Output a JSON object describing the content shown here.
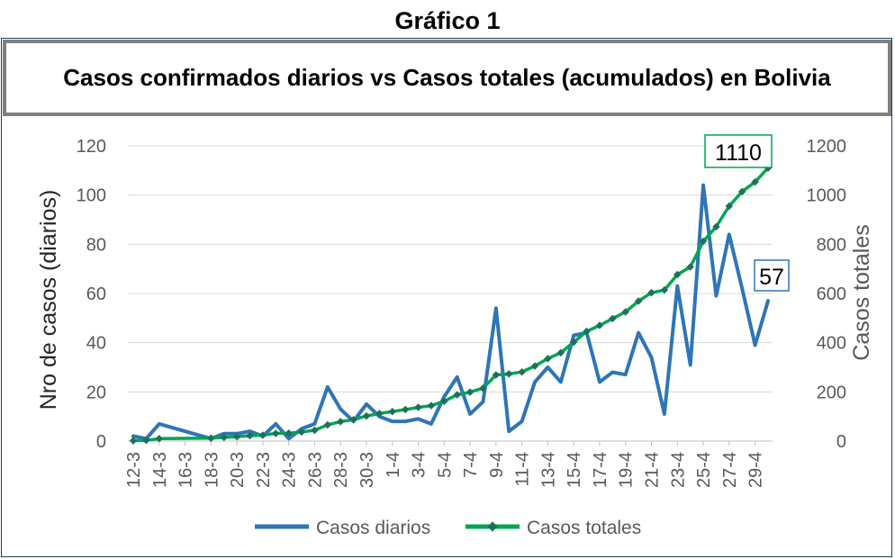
{
  "sup_title": "Gráfico 1",
  "chart_data": {
    "type": "line",
    "title": "Casos confirmados diarios vs Casos totales (acumulados) en Bolivia",
    "ylabel": "Nro de casos (diarios)",
    "y2label": "Casos totales",
    "ylim": [
      0,
      120
    ],
    "y2lim": [
      0,
      1200
    ],
    "yticks": [
      "0",
      "20",
      "40",
      "60",
      "80",
      "100",
      "120"
    ],
    "y2ticks": [
      "0",
      "200",
      "400",
      "600",
      "800",
      "1000",
      "1200"
    ],
    "xtick_labels": [
      "12-3",
      "14-3",
      "16-3",
      "18-3",
      "20-3",
      "22-3",
      "24-3",
      "26-3",
      "28-3",
      "30-3",
      "1-4",
      "3-4",
      "5-4",
      "7-4",
      "9-4",
      "11-4",
      "13-4",
      "15-4",
      "17-4",
      "19-4",
      "21-4",
      "23-4",
      "25-4",
      "27-4",
      "29-4"
    ],
    "grid": true,
    "legend": "bottom",
    "x": [
      "12-3",
      "13-3",
      "14-3",
      "18-3",
      "19-3",
      "20-3",
      "21-3",
      "22-3",
      "23-3",
      "24-3",
      "25-3",
      "26-3",
      "27-3",
      "28-3",
      "29-3",
      "30-3",
      "31-3",
      "1-4",
      "2-4",
      "3-4",
      "4-4",
      "5-4",
      "6-4",
      "7-4",
      "8-4",
      "9-4",
      "10-4",
      "11-4",
      "12-4",
      "13-4",
      "14-4",
      "15-4",
      "16-4",
      "17-4",
      "18-4",
      "19-4",
      "20-4",
      "21-4",
      "22-4",
      "23-4",
      "24-4",
      "25-4",
      "26-4",
      "27-4",
      "28-4",
      "29-4",
      "30-4"
    ],
    "series": [
      {
        "name": "Casos diarios",
        "axis": "left",
        "color": "#2e75b6",
        "values": [
          2,
          1,
          7,
          1,
          3,
          3,
          4,
          2,
          7,
          1,
          5,
          7,
          22,
          13,
          8,
          15,
          10,
          8,
          8,
          9,
          7,
          18,
          26,
          11,
          16,
          54,
          4,
          8,
          24,
          30,
          24,
          43,
          44,
          24,
          28,
          27,
          44,
          34,
          11,
          63,
          31,
          104,
          59,
          84,
          62,
          39,
          57
        ]
      },
      {
        "name": "Casos totales",
        "axis": "right",
        "color": "#00a651",
        "values": [
          2,
          3,
          10,
          12,
          15,
          18,
          22,
          24,
          31,
          32,
          37,
          44,
          66,
          79,
          87,
          102,
          112,
          120,
          128,
          137,
          144,
          162,
          188,
          199,
          215,
          269,
          273,
          281,
          305,
          335,
          359,
          402,
          446,
          470,
          498,
          525,
          569,
          603,
          614,
          677,
          708,
          812,
          871,
          955,
          1014,
          1053,
          1110
        ]
      }
    ],
    "annotations": [
      "1110",
      "57"
    ]
  }
}
